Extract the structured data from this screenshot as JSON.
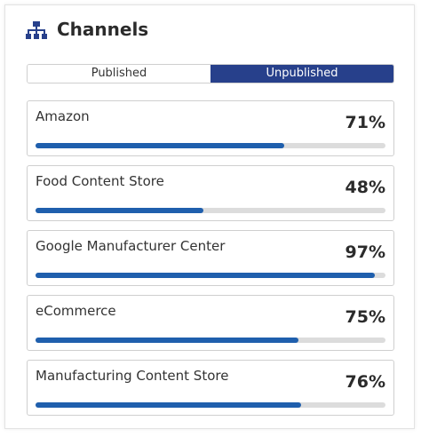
{
  "header": {
    "title": "Channels"
  },
  "tabs": [
    "Published",
    "Unpublished"
  ],
  "active_tab": 1,
  "channels": [
    {
      "name": "Amazon",
      "value": 71,
      "label": "71%"
    },
    {
      "name": "Food Content Store",
      "value": 48,
      "label": "48%"
    },
    {
      "name": "Google Manufacturer Center",
      "value": 97,
      "label": "97%"
    },
    {
      "name": "eCommerce",
      "value": 75,
      "label": "75%"
    },
    {
      "name": "Manufacturing Content Store",
      "value": 76,
      "label": "76%"
    }
  ]
}
